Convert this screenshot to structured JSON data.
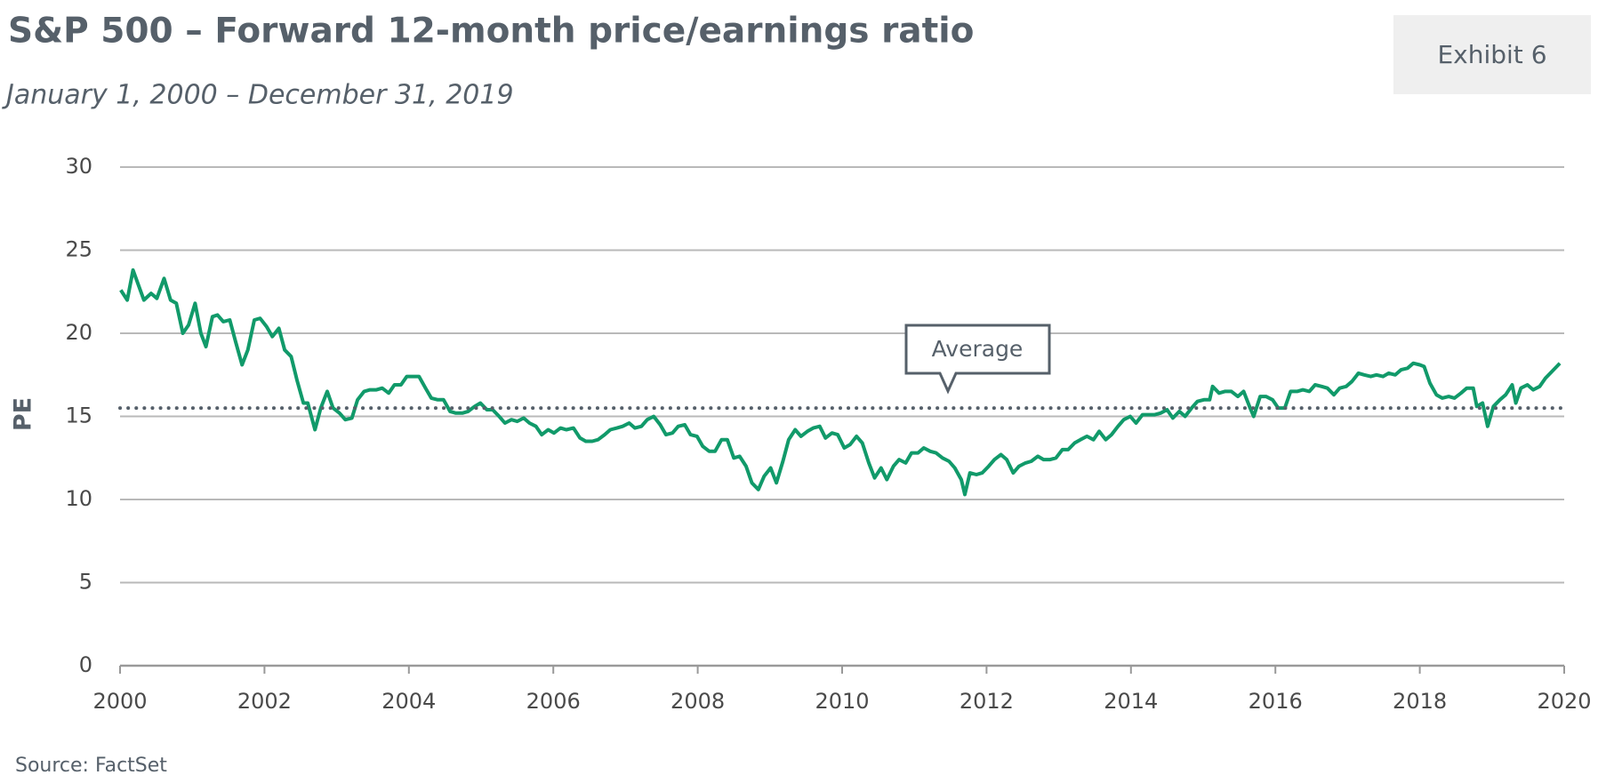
{
  "chart_data": {
    "type": "line",
    "title": "S&P 500 – Forward 12-month price/earnings ratio",
    "subtitle": "January 1, 2000 – December 31, 2019",
    "exhibit": "Exhibit 6",
    "y_label": "PE",
    "source": "Source: FactSet",
    "color": "#119a6a",
    "grid": true,
    "average": {
      "label": "Average",
      "value": 15.5
    },
    "xlim": [
      2000,
      2020
    ],
    "xticks": [
      2000,
      2002,
      2004,
      2006,
      2008,
      2010,
      2012,
      2014,
      2016,
      2018,
      2020
    ],
    "ylim": [
      0,
      30
    ],
    "yticks": [
      0,
      5,
      10,
      15,
      20,
      25,
      30
    ],
    "x": [
      2000.01,
      2000.1,
      2000.18,
      2000.33,
      2000.43,
      2000.51,
      2000.61,
      2000.7,
      2000.78,
      2000.87,
      2000.95,
      2001.04,
      2001.12,
      2001.19,
      2001.28,
      2001.35,
      2001.43,
      2001.52,
      2001.6,
      2001.69,
      2001.77,
      2001.86,
      2001.94,
      2002.03,
      2002.11,
      2002.2,
      2002.28,
      2002.37,
      2002.45,
      2002.54,
      2002.6,
      2002.7,
      2002.78,
      2002.87,
      2002.95,
      2003.04,
      2003.12,
      2003.21,
      2003.29,
      2003.38,
      2003.46,
      2003.55,
      2003.63,
      2003.72,
      2003.8,
      2003.89,
      2003.97,
      2004.06,
      2004.14,
      2004.23,
      2004.31,
      2004.4,
      2004.48,
      2004.57,
      2004.65,
      2004.74,
      2004.82,
      2004.91,
      2004.99,
      2005.08,
      2005.16,
      2005.25,
      2005.33,
      2005.42,
      2005.5,
      2005.59,
      2005.67,
      2005.76,
      2005.84,
      2005.93,
      2006.01,
      2006.1,
      2006.18,
      2006.28,
      2006.37,
      2006.45,
      2006.54,
      2006.62,
      2006.71,
      2006.79,
      2006.88,
      2006.96,
      2007.05,
      2007.13,
      2007.22,
      2007.3,
      2007.39,
      2007.48,
      2007.56,
      2007.65,
      2007.73,
      2007.82,
      2007.9,
      2007.99,
      2008.07,
      2008.16,
      2008.24,
      2008.33,
      2008.41,
      2008.5,
      2008.58,
      2008.67,
      2008.75,
      2008.84,
      2008.92,
      2009.01,
      2009.09,
      2009.18,
      2009.26,
      2009.35,
      2009.43,
      2009.52,
      2009.6,
      2009.69,
      2009.77,
      2009.86,
      2009.94,
      2010.03,
      2010.11,
      2010.2,
      2010.28,
      2010.37,
      2010.45,
      2010.54,
      2010.62,
      2010.71,
      2010.79,
      2010.88,
      2010.96,
      2011.05,
      2011.13,
      2011.22,
      2011.3,
      2011.39,
      2011.48,
      2011.56,
      2011.65,
      2011.7,
      2011.77,
      2011.86,
      2011.94,
      2012.03,
      2012.11,
      2012.2,
      2012.28,
      2012.37,
      2012.45,
      2012.54,
      2012.62,
      2012.71,
      2012.79,
      2012.88,
      2012.96,
      2013.05,
      2013.13,
      2013.22,
      2013.3,
      2013.39,
      2013.48,
      2013.56,
      2013.65,
      2013.73,
      2013.82,
      2013.9,
      2013.99,
      2014.07,
      2014.16,
      2014.24,
      2014.33,
      2014.41,
      2014.5,
      2014.58,
      2014.67,
      2014.75,
      2014.84,
      2014.92,
      2015.01,
      2015.09,
      2015.13,
      2015.22,
      2015.3,
      2015.39,
      2015.48,
      2015.56,
      2015.65,
      2015.7,
      2015.79,
      2015.87,
      2015.96,
      2016.04,
      2016.13,
      2016.21,
      2016.3,
      2016.38,
      2016.47,
      2016.55,
      2016.64,
      2016.72,
      2016.81,
      2016.89,
      2016.98,
      2017.06,
      2017.15,
      2017.23,
      2017.32,
      2017.4,
      2017.49,
      2017.57,
      2017.66,
      2017.74,
      2017.83,
      2017.91,
      2018.0,
      2018.06,
      2018.14,
      2018.23,
      2018.31,
      2018.4,
      2018.48,
      2018.57,
      2018.65,
      2018.74,
      2018.79,
      2018.87,
      2018.94,
      2019.02,
      2019.11,
      2019.19,
      2019.28,
      2019.33,
      2019.4,
      2019.49,
      2019.57,
      2019.66,
      2019.74,
      2019.83,
      2019.94
    ],
    "values": [
      22.6,
      22.0,
      23.8,
      22.0,
      22.4,
      22.1,
      23.3,
      22.0,
      21.8,
      20.0,
      20.5,
      21.8,
      20.0,
      19.2,
      21.0,
      21.1,
      20.7,
      20.8,
      19.5,
      18.1,
      19.0,
      20.8,
      20.9,
      20.4,
      19.8,
      20.3,
      19.0,
      18.6,
      17.2,
      15.8,
      15.8,
      14.2,
      15.5,
      16.5,
      15.5,
      15.2,
      14.8,
      14.9,
      16.0,
      16.5,
      16.6,
      16.6,
      16.7,
      16.4,
      16.9,
      16.9,
      17.4,
      17.4,
      17.4,
      16.7,
      16.1,
      16.0,
      16.0,
      15.3,
      15.2,
      15.2,
      15.3,
      15.6,
      15.8,
      15.4,
      15.4,
      15.0,
      14.6,
      14.8,
      14.7,
      14.9,
      14.6,
      14.4,
      13.9,
      14.2,
      14.0,
      14.3,
      14.2,
      14.3,
      13.7,
      13.5,
      13.5,
      13.6,
      13.9,
      14.2,
      14.3,
      14.4,
      14.6,
      14.3,
      14.4,
      14.8,
      15.0,
      14.5,
      13.9,
      14.0,
      14.4,
      14.5,
      13.9,
      13.8,
      13.2,
      12.9,
      12.9,
      13.6,
      13.6,
      12.5,
      12.6,
      12.0,
      11.0,
      10.6,
      11.4,
      11.9,
      11.0,
      12.3,
      13.6,
      14.2,
      13.8,
      14.1,
      14.3,
      14.4,
      13.7,
      14.0,
      13.9,
      13.1,
      13.3,
      13.8,
      13.4,
      12.2,
      11.3,
      11.9,
      11.2,
      12.0,
      12.4,
      12.2,
      12.8,
      12.8,
      13.1,
      12.9,
      12.8,
      12.5,
      12.3,
      11.9,
      11.2,
      10.3,
      11.6,
      11.5,
      11.6,
      12.0,
      12.4,
      12.7,
      12.4,
      11.6,
      12.0,
      12.2,
      12.3,
      12.6,
      12.4,
      12.4,
      12.5,
      13.0,
      13.0,
      13.4,
      13.6,
      13.8,
      13.6,
      14.1,
      13.6,
      13.9,
      14.4,
      14.8,
      15.0,
      14.6,
      15.1,
      15.1,
      15.1,
      15.2,
      15.4,
      14.9,
      15.3,
      15.0,
      15.5,
      15.9,
      16.0,
      16.0,
      16.8,
      16.4,
      16.5,
      16.5,
      16.2,
      16.5,
      15.5,
      15.0,
      16.2,
      16.2,
      16.0,
      15.5,
      15.5,
      16.5,
      16.5,
      16.6,
      16.5,
      16.9,
      16.8,
      16.7,
      16.3,
      16.7,
      16.8,
      17.1,
      17.6,
      17.5,
      17.4,
      17.5,
      17.4,
      17.6,
      17.5,
      17.8,
      17.9,
      18.2,
      18.1,
      18.0,
      17.0,
      16.3,
      16.1,
      16.2,
      16.1,
      16.4,
      16.7,
      16.7,
      15.6,
      15.8,
      14.4,
      15.6,
      16.0,
      16.3,
      16.9,
      15.8,
      16.7,
      16.9,
      16.6,
      16.8,
      17.3,
      17.7,
      18.2
    ]
  }
}
